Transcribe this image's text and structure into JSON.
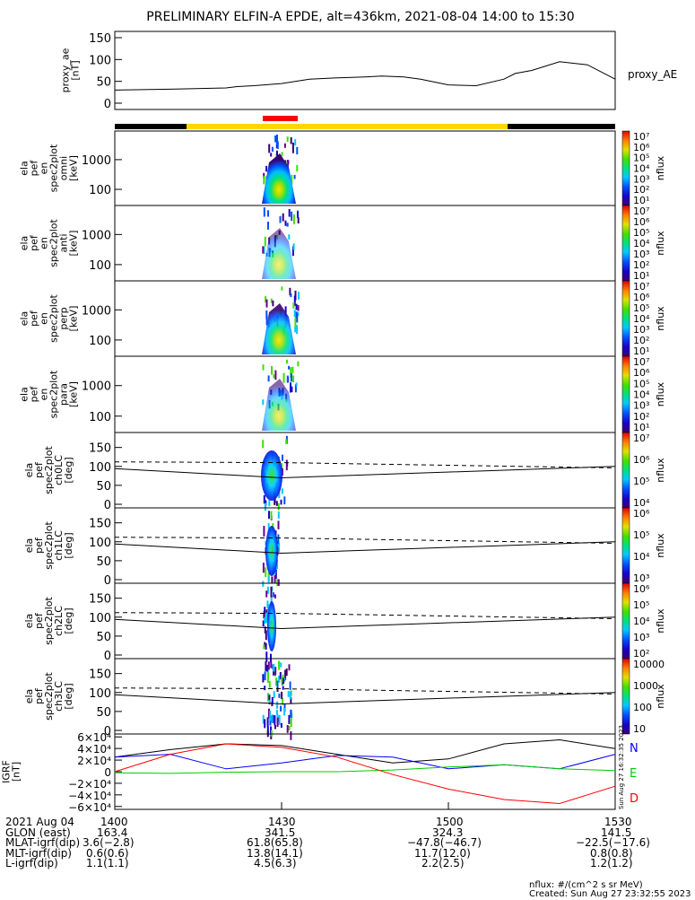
{
  "title": "PRELIMINARY ELFIN-A EPDE, alt=436km, 2021-08-04 14:00 to 15:30",
  "colors": {
    "day_night_bar": [
      "#000000",
      "#ffd700",
      "#000000"
    ],
    "science_zone": "#ff0000",
    "grf_components": {
      "N": "#0000ff",
      "E": "#00cc00",
      "D": "#ff0000",
      "total": "#000000"
    }
  },
  "chart_data": [
    {
      "type": "line",
      "ylabel": "proxy_ae\n[nT]",
      "series_label": "proxy_AE",
      "ylim": [
        0,
        150
      ],
      "yticks": [
        "150",
        "100",
        "50",
        "0"
      ],
      "x": [
        0,
        5,
        10,
        20,
        22,
        25,
        30,
        35,
        40,
        45,
        48,
        52,
        55,
        60,
        65,
        70,
        72,
        75,
        80,
        85,
        90
      ],
      "values": [
        30,
        31,
        32,
        35,
        38,
        40,
        45,
        55,
        58,
        60,
        62,
        60,
        55,
        42,
        40,
        55,
        68,
        75,
        95,
        88,
        55
      ]
    },
    {
      "type": "heatmap",
      "ylabel": "ela\npef\nen\nspec2plot\nomni\n[keV]",
      "ylim": [
        50,
        8000
      ],
      "yticks": [
        "1000",
        "100"
      ],
      "colorbar": {
        "label": "nflux",
        "ticks": [
          "10⁷",
          "10⁶",
          "10⁵",
          "10⁴",
          "10³",
          "10²",
          "10¹"
        ]
      }
    },
    {
      "type": "heatmap",
      "ylabel": "ela\npef\nen\nspec2plot\nanti\n[keV]",
      "ylim": [
        50,
        8000
      ],
      "yticks": [
        "1000",
        "100"
      ],
      "colorbar": {
        "label": "nflux",
        "ticks": [
          "10⁷",
          "10⁶",
          "10⁵",
          "10⁴",
          "10³",
          "10²",
          "10¹"
        ]
      }
    },
    {
      "type": "heatmap",
      "ylabel": "ela\npef\nen\nspec2plot\nperp\n[keV]",
      "ylim": [
        50,
        8000
      ],
      "yticks": [
        "1000",
        "100"
      ],
      "colorbar": {
        "label": "nflux",
        "ticks": [
          "10⁷",
          "10⁶",
          "10⁵",
          "10⁴",
          "10³",
          "10²",
          "10¹"
        ]
      }
    },
    {
      "type": "heatmap",
      "ylabel": "ela\npef\nen\nspec2plot\npara\n[keV]",
      "ylim": [
        50,
        8000
      ],
      "yticks": [
        "1000",
        "100"
      ],
      "colorbar": {
        "label": "nflux",
        "ticks": [
          "10⁷",
          "10⁶",
          "10⁵",
          "10⁴",
          "10³",
          "10²",
          "10¹"
        ]
      }
    },
    {
      "type": "heatmap",
      "ylabel": "ela\npef\nspec2plot\nch0LC\n[deg]",
      "ylim": [
        0,
        180
      ],
      "yticks": [
        "150",
        "100",
        "50",
        "0"
      ],
      "colorbar": {
        "label": "nflux",
        "ticks": [
          "10⁷",
          "10⁶",
          "10⁵",
          "10⁴"
        ]
      }
    },
    {
      "type": "heatmap",
      "ylabel": "ela\npef\nspec2plot\nch1LC\n[deg]",
      "ylim": [
        0,
        180
      ],
      "yticks": [
        "150",
        "100",
        "50",
        "0"
      ],
      "colorbar": {
        "label": "nflux",
        "ticks": [
          "10⁶",
          "10⁵",
          "10⁴",
          "10³"
        ]
      }
    },
    {
      "type": "heatmap",
      "ylabel": "ela\npef\nspec2plot\nch2LC\n[deg]",
      "ylim": [
        0,
        180
      ],
      "yticks": [
        "150",
        "100",
        "50",
        "0"
      ],
      "colorbar": {
        "label": "nflux",
        "ticks": [
          "10⁶",
          "10⁵",
          "10⁴",
          "10³",
          "10²"
        ]
      }
    },
    {
      "type": "heatmap",
      "ylabel": "ela\npef\nspec2plot\nch3LC\n[deg]",
      "ylim": [
        0,
        180
      ],
      "yticks": [
        "150",
        "100",
        "50",
        "0"
      ],
      "colorbar": {
        "label": "nflux",
        "ticks": [
          "10000",
          "1000",
          "100",
          "10"
        ]
      }
    },
    {
      "type": "line",
      "ylabel": "IGRF\n[nT]",
      "ylim": [
        -65000,
        65000
      ],
      "yticks": [
        "6×10⁴",
        "4×10⁴",
        "2×10⁴",
        "0",
        "−2×10⁴",
        "−4×10⁴",
        "−6×10⁴"
      ],
      "legend": [
        "N",
        "E",
        "D"
      ],
      "stamp": "Sun Aug 27 16:32:35 2023",
      "x": [
        0,
        10,
        20,
        30,
        40,
        50,
        60,
        70,
        80,
        90
      ],
      "series": [
        {
          "values": [
            25000,
            38000,
            48000,
            45000,
            30000,
            15000,
            22000,
            48000,
            55000,
            40000
          ]
        },
        {
          "values": [
            25000,
            30000,
            5000,
            15000,
            28000,
            25000,
            5000,
            12000,
            5000,
            30000
          ]
        },
        {
          "values": [
            -2000,
            -3000,
            -1000,
            0,
            0,
            3000,
            8000,
            12000,
            5000,
            2000
          ]
        },
        {
          "values": [
            0,
            30000,
            48000,
            42000,
            25000,
            -5000,
            -30000,
            -48000,
            -55000,
            -25000
          ]
        }
      ]
    }
  ],
  "footer": {
    "rows": [
      {
        "label": "2021 Aug 04",
        "values": [
          "1400",
          "1430",
          "1500",
          "1530"
        ]
      },
      {
        "label": "GLON (east)",
        "values": [
          "163.4",
          "341.5",
          "324.3",
          "141.5"
        ]
      },
      {
        "label": "MLAT-igrf(dip)",
        "values": [
          "3.6(−2.8)",
          "61.8(65.8)",
          "−47.8(−46.7)",
          "−22.5(−17.6)"
        ]
      },
      {
        "label": "MLT-igrf(dip)",
        "values": [
          "0.6(0.6)",
          "13.8(14.1)",
          "11.7(12.0)",
          "0.8(0.8)"
        ]
      },
      {
        "label": "L-igrf(dip)",
        "values": [
          "1.1(1.1)",
          "4.5(6.3)",
          "2.2(2.5)",
          "1.2(1.2)"
        ]
      }
    ],
    "note": "nflux: #/(cm^2 s sr MeV)",
    "created": "Created: Sun Aug 27 23:32:55 2023"
  }
}
